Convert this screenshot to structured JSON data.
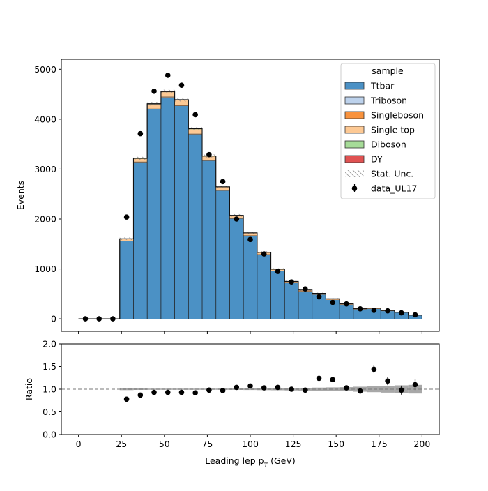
{
  "chart_data": [
    {
      "type": "bar",
      "stacked": true,
      "histogram": true,
      "bin_edges": [
        0,
        8,
        16,
        24,
        32,
        40,
        48,
        56,
        64,
        72,
        80,
        88,
        96,
        104,
        112,
        120,
        128,
        136,
        144,
        152,
        160,
        168,
        176,
        184,
        192,
        200
      ],
      "ylabel": "Events",
      "ylim": [
        -250,
        5200
      ],
      "yticks": [
        0,
        1000,
        2000,
        3000,
        4000,
        5000
      ],
      "xlim": [
        -10,
        210
      ],
      "xticks": [
        0,
        25,
        50,
        75,
        100,
        125,
        150,
        175,
        200
      ],
      "legend": {
        "title": "sample",
        "placement": "top-right"
      },
      "series": [
        {
          "name": "Ttbar",
          "color": "#4b91c5",
          "values": [
            0,
            0,
            0,
            1560,
            3140,
            4200,
            4440,
            4270,
            3700,
            3170,
            2570,
            2010,
            1670,
            1290,
            960,
            720,
            555,
            490,
            385,
            290,
            195,
            205,
            160,
            125,
            70
          ]
        },
        {
          "name": "Triboson",
          "color": "#bdd2ec",
          "values": [
            0,
            0,
            0,
            0,
            0,
            0,
            0,
            0,
            0,
            0,
            0,
            0,
            0,
            0,
            0,
            0,
            0,
            0,
            0,
            0,
            0,
            0,
            0,
            0,
            0
          ]
        },
        {
          "name": "Singleboson",
          "color": "#f8923d",
          "values": [
            0,
            0,
            0,
            5,
            8,
            10,
            10,
            10,
            8,
            6,
            5,
            4,
            3,
            3,
            2,
            2,
            1,
            1,
            1,
            1,
            1,
            1,
            1,
            0,
            0
          ]
        },
        {
          "name": "Single top",
          "color": "#fdc994",
          "values": [
            0,
            0,
            0,
            35,
            62,
            90,
            95,
            100,
            95,
            80,
            65,
            55,
            45,
            38,
            30,
            25,
            20,
            18,
            15,
            12,
            10,
            9,
            7,
            6,
            5
          ]
        },
        {
          "name": "Diboson",
          "color": "#a6dc98",
          "values": [
            0,
            0,
            0,
            2,
            3,
            4,
            4,
            4,
            3,
            3,
            2,
            2,
            2,
            1,
            1,
            1,
            1,
            1,
            1,
            1,
            0,
            0,
            0,
            0,
            0
          ]
        },
        {
          "name": "DY",
          "color": "#e05252",
          "values": [
            0,
            0,
            0,
            3,
            5,
            6,
            6,
            6,
            5,
            5,
            4,
            3,
            3,
            2,
            2,
            2,
            1,
            1,
            1,
            1,
            1,
            0,
            0,
            0,
            0
          ]
        }
      ],
      "stat_unc": {
        "name": "Stat. Unc.",
        "values": [
          0,
          0,
          0,
          25,
          30,
          35,
          35,
          35,
          30,
          30,
          25,
          25,
          20,
          20,
          18,
          15,
          14,
          13,
          12,
          10,
          10,
          9,
          8,
          7,
          6
        ]
      },
      "data": {
        "name": "data_UL17",
        "color": "#000000",
        "x": [
          4,
          12,
          20,
          28,
          36,
          44,
          52,
          60,
          68,
          76,
          84,
          92,
          100,
          108,
          116,
          124,
          132,
          140,
          148,
          156,
          164,
          172,
          180,
          188,
          196
        ],
        "y": [
          0,
          0,
          0,
          2040,
          3710,
          4560,
          4880,
          4680,
          4090,
          3290,
          2750,
          2000,
          1590,
          1300,
          950,
          740,
          600,
          440,
          330,
          300,
          200,
          170,
          160,
          120,
          80
        ]
      }
    },
    {
      "type": "scatter",
      "xlabel": "Leading lep $p_T$ (GeV)",
      "xlabel_main": "Leading lep p",
      "xlabel_sub": "T",
      "xlabel_unit": " (GeV)",
      "ylabel": "Ratio",
      "ylim": [
        0,
        2
      ],
      "yticks": [
        "0.0",
        "0.5",
        "1.0",
        "1.5",
        "2.0"
      ],
      "xlim": [
        -10,
        210
      ],
      "xticks": [
        "0",
        "25",
        "50",
        "75",
        "100",
        "125",
        "150",
        "175",
        "200"
      ],
      "reference_line": 1.0,
      "unc_band": [
        0,
        0,
        0,
        0.02,
        0.015,
        0.012,
        0.012,
        0.012,
        0.012,
        0.012,
        0.013,
        0.015,
        0.017,
        0.02,
        0.023,
        0.027,
        0.03,
        0.035,
        0.04,
        0.045,
        0.055,
        0.065,
        0.075,
        0.085,
        0.095
      ],
      "x": [
        28,
        36,
        44,
        52,
        60,
        68,
        76,
        84,
        92,
        100,
        108,
        116,
        124,
        132,
        140,
        148,
        156,
        164,
        172,
        180,
        188,
        196
      ],
      "y": [
        0.78,
        0.87,
        0.93,
        0.93,
        0.93,
        0.92,
        0.98,
        0.97,
        1.04,
        1.07,
        1.03,
        1.04,
        1.0,
        0.98,
        1.24,
        1.21,
        1.03,
        0.96,
        1.44,
        1.18,
        0.98,
        1.1
      ],
      "yerr": [
        0.01,
        0.01,
        0.01,
        0.01,
        0.01,
        0.01,
        0.01,
        0.01,
        0.015,
        0.02,
        0.02,
        0.025,
        0.03,
        0.035,
        0.04,
        0.05,
        0.05,
        0.06,
        0.08,
        0.09,
        0.1,
        0.12
      ]
    }
  ]
}
